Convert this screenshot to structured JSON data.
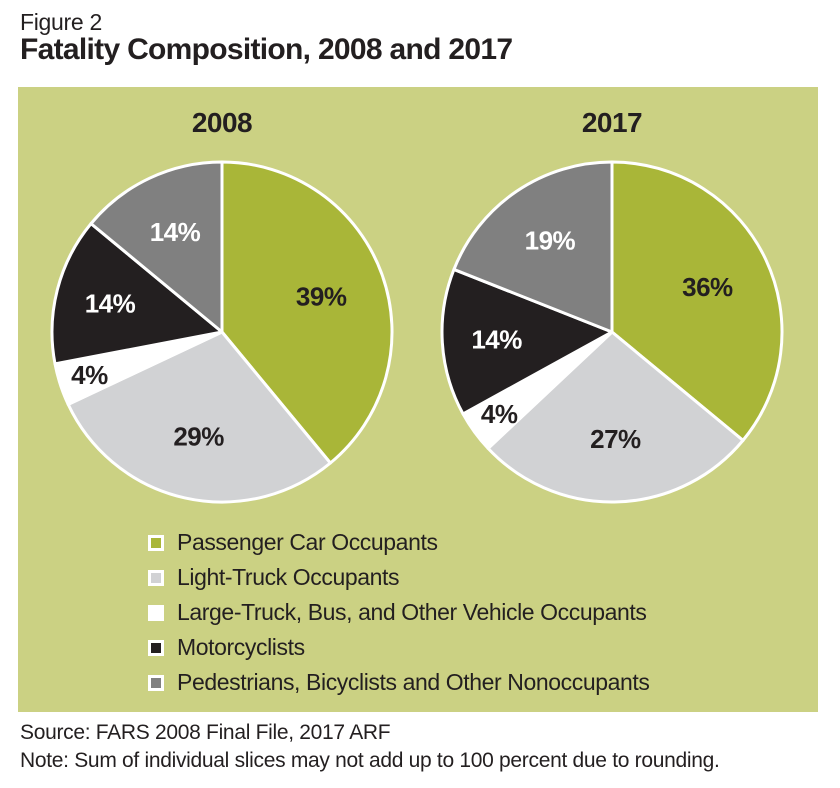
{
  "figure": {
    "label": "Figure 2",
    "title": "Fatality Composition, 2008 and 2017"
  },
  "chart_data": {
    "type": "pie",
    "unit": "%",
    "direction": "clockwise",
    "start_angle_deg": 0,
    "legend_position": "below",
    "categories": [
      "Passenger Car Occupants",
      "Light-Truck Occupants",
      "Large-Truck, Bus, and Other Vehicle Occupants",
      "Motorcyclists",
      "Pedestrians, Bicyclists and Other Nonoccupants"
    ],
    "colors": [
      "#a9b638",
      "#d1d2d4",
      "#ffffff",
      "#231f20",
      "#808080"
    ],
    "label_colors": [
      "#231f20",
      "#231f20",
      "#231f20",
      "#ffffff",
      "#ffffff"
    ],
    "label_radius": [
      0.62,
      0.63,
      0.82,
      0.68,
      0.65
    ],
    "charts": [
      {
        "title": "2008",
        "values": [
          39,
          29,
          4,
          14,
          14
        ]
      },
      {
        "title": "2017",
        "values": [
          36,
          27,
          4,
          14,
          19
        ]
      }
    ]
  },
  "notes": {
    "source": "Source: FARS 2008 Final File, 2017 ARF",
    "note": "Note: Sum of individual slices may not add up to 100 percent due to rounding."
  },
  "style": {
    "panel_background": "#cbd183",
    "slice_border": "#ffffff",
    "text_color": "#231f20"
  }
}
